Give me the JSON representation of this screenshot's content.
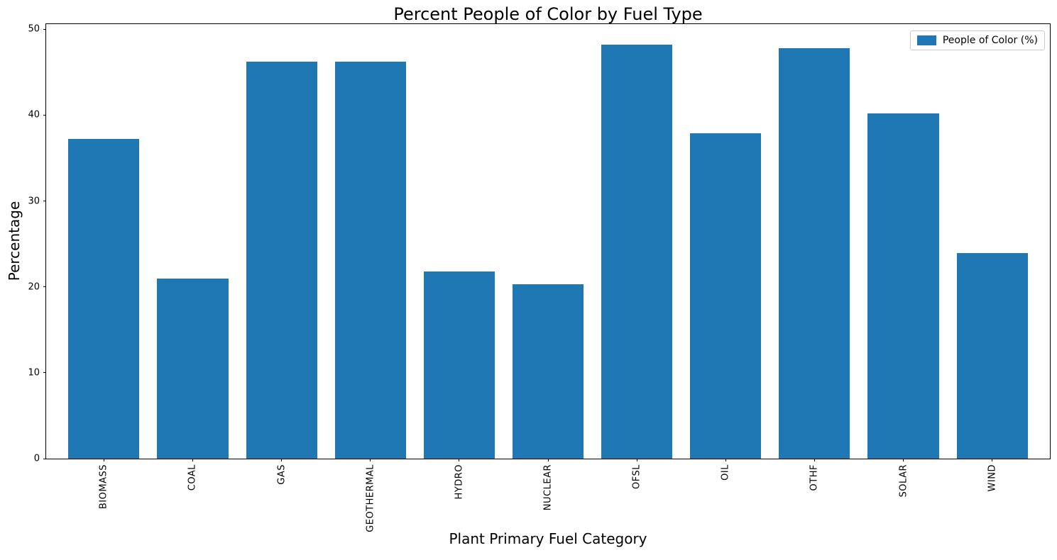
{
  "window": {
    "title": "Percent People of Color by Fuel Type"
  },
  "chart_data": {
    "type": "bar",
    "title": "Percent People of Color by Fuel Type",
    "xlabel": "Plant Primary Fuel Category",
    "ylabel": "Percentage",
    "categories": [
      "BIOMASS",
      "COAL",
      "GAS",
      "GEOTHERMAL",
      "HYDRO",
      "NUCLEAR",
      "OFSL",
      "OIL",
      "OTHF",
      "SOLAR",
      "WIND"
    ],
    "series": [
      {
        "name": "People of Color (%)",
        "values": [
          37.2,
          21.0,
          46.2,
          46.2,
          21.8,
          20.3,
          48.2,
          37.9,
          47.8,
          40.2,
          23.9
        ]
      }
    ],
    "ylim": [
      0,
      50.6
    ],
    "yticks": [
      0,
      10,
      20,
      30,
      40,
      50
    ],
    "grid": false,
    "legend": {
      "position": "upper right",
      "entries": [
        "People of Color (%)"
      ]
    },
    "colors": {
      "bar": "#1f77b4",
      "spine": "#000000",
      "text": "#000000",
      "legend_border": "#cccccc"
    }
  }
}
